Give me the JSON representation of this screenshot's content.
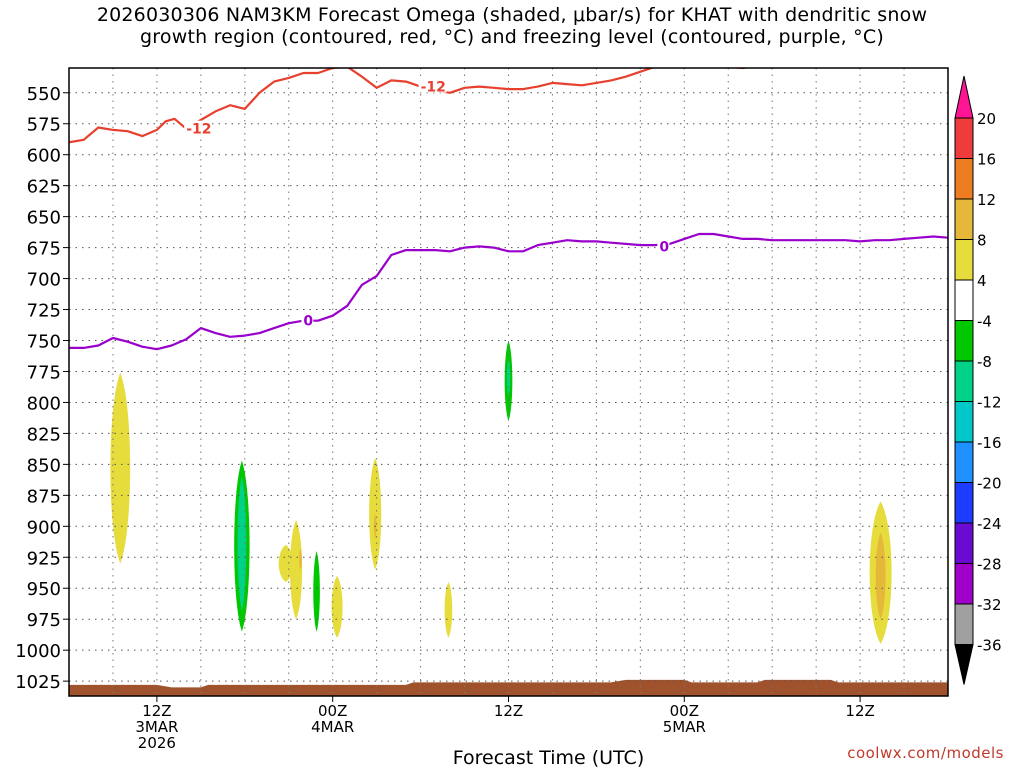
{
  "title_lines": [
    "2026030306 NAM3KM Forecast Omega (shaded, μbar/s) for KHAT with dendritic snow",
    "growth region (contoured, red, °C) and freezing level (contoured, purple, °C)"
  ],
  "watermark": "coolwx.com/models",
  "chart_data": {
    "type": "time-height cross section",
    "xlabel": "Forecast Time (UTC)",
    "ylabel": "",
    "x_range_hours": [
      0,
      60
    ],
    "y_reversed": true,
    "y_ticks": [
      550,
      575,
      600,
      625,
      650,
      675,
      700,
      725,
      750,
      775,
      800,
      825,
      850,
      875,
      900,
      925,
      950,
      975,
      1000,
      1025
    ],
    "grid": true,
    "x_ticks": [
      {
        "hour": 6,
        "lines": [
          "12Z",
          "3MAR",
          "2026"
        ]
      },
      {
        "hour": 18,
        "lines": [
          "00Z",
          "4MAR"
        ]
      },
      {
        "hour": 30,
        "lines": [
          "12Z"
        ]
      },
      {
        "hour": 42,
        "lines": [
          "00Z",
          "5MAR"
        ]
      },
      {
        "hour": 54,
        "lines": [
          "12Z"
        ]
      }
    ],
    "colorbar": {
      "units": "μbar/s",
      "levels": [
        20,
        16,
        12,
        8,
        4,
        -4,
        -8,
        -12,
        -16,
        -20,
        -24,
        -28,
        -32,
        -36
      ],
      "colors": [
        "#ff1493",
        "#ee3b3b",
        "#ee7d22",
        "#e6b83a",
        "#e6dc3c",
        "#ffffff",
        "#00c800",
        "#00d287",
        "#00c8c8",
        "#1e90ff",
        "#1e3cff",
        "#6a0ad2",
        "#a000c8",
        "#a0a0a0",
        "#000000"
      ]
    },
    "contours": [
      {
        "name": "-12",
        "color": "#e8402e",
        "label_positions": [
          {
            "hour": 8.0,
            "p": 579
          },
          {
            "hour": 24.0,
            "p": 545
          }
        ],
        "points": [
          [
            0,
            590
          ],
          [
            1,
            588
          ],
          [
            2,
            578
          ],
          [
            3,
            580
          ],
          [
            4,
            581
          ],
          [
            5,
            585
          ],
          [
            6,
            580
          ],
          [
            6.6,
            573
          ],
          [
            7.2,
            571
          ],
          [
            8.0,
            579
          ],
          [
            9,
            572
          ],
          [
            10,
            565
          ],
          [
            11,
            560
          ],
          [
            12,
            563
          ],
          [
            13,
            550
          ],
          [
            14,
            541
          ],
          [
            15,
            538
          ],
          [
            16,
            534
          ],
          [
            17,
            534
          ],
          [
            18,
            530
          ],
          [
            19,
            529
          ],
          [
            20,
            537
          ],
          [
            21,
            546
          ],
          [
            22,
            540
          ],
          [
            23,
            541
          ],
          [
            24,
            545
          ],
          [
            25,
            548
          ],
          [
            26,
            550
          ],
          [
            27,
            546
          ],
          [
            28,
            545
          ],
          [
            29,
            546
          ],
          [
            30,
            547
          ],
          [
            31,
            547
          ],
          [
            32,
            545
          ],
          [
            33,
            542
          ],
          [
            34,
            543
          ],
          [
            35,
            544
          ],
          [
            36,
            542
          ],
          [
            37,
            540
          ],
          [
            38,
            537
          ],
          [
            39,
            533
          ],
          [
            40,
            529
          ],
          [
            41,
            527
          ],
          [
            42,
            527
          ],
          [
            43,
            525
          ],
          [
            44,
            527
          ],
          [
            45,
            529
          ],
          [
            46,
            530
          ],
          [
            47,
            528
          ],
          [
            48,
            527
          ],
          [
            49,
            527
          ],
          [
            50,
            526
          ],
          [
            51,
            525
          ],
          [
            52,
            525
          ],
          [
            53,
            523
          ],
          [
            60,
            522
          ]
        ]
      },
      {
        "name": "0",
        "color": "#9900cc",
        "label_positions": [
          {
            "hour": 16.0,
            "p": 734
          },
          {
            "hour": 40.3,
            "p": 674
          }
        ],
        "points": [
          [
            0,
            756
          ],
          [
            1,
            756
          ],
          [
            2,
            754
          ],
          [
            3,
            748
          ],
          [
            4,
            751
          ],
          [
            5,
            755
          ],
          [
            6,
            757
          ],
          [
            7,
            754
          ],
          [
            8,
            749
          ],
          [
            9,
            740
          ],
          [
            10,
            744
          ],
          [
            11,
            747
          ],
          [
            12,
            746
          ],
          [
            13,
            744
          ],
          [
            14,
            740
          ],
          [
            15,
            736
          ],
          [
            16,
            734
          ],
          [
            17,
            734
          ],
          [
            18,
            730
          ],
          [
            19,
            722
          ],
          [
            20,
            705
          ],
          [
            21,
            698
          ],
          [
            22,
            681
          ],
          [
            23,
            677
          ],
          [
            24,
            677
          ],
          [
            25,
            677
          ],
          [
            26,
            678
          ],
          [
            27,
            675
          ],
          [
            28,
            674
          ],
          [
            29,
            675
          ],
          [
            30,
            678
          ],
          [
            31,
            678
          ],
          [
            32,
            673
          ],
          [
            33,
            671
          ],
          [
            34,
            669
          ],
          [
            35,
            670
          ],
          [
            36,
            670
          ],
          [
            37,
            671
          ],
          [
            38,
            672
          ],
          [
            39,
            673
          ],
          [
            40,
            673
          ],
          [
            41,
            672
          ],
          [
            42,
            668
          ],
          [
            43,
            664
          ],
          [
            44,
            664
          ],
          [
            45,
            666
          ],
          [
            46,
            668
          ],
          [
            47,
            668
          ],
          [
            48,
            669
          ],
          [
            49,
            669
          ],
          [
            50,
            669
          ],
          [
            51,
            669
          ],
          [
            52,
            669
          ],
          [
            53,
            669
          ],
          [
            54,
            670
          ],
          [
            55,
            669
          ],
          [
            56,
            669
          ],
          [
            57,
            668
          ],
          [
            58,
            667
          ],
          [
            59,
            666
          ],
          [
            60,
            667
          ]
        ]
      }
    ],
    "shaded_regions": [
      {
        "hour": 3.5,
        "p_top": 776,
        "p_bottom": 930,
        "half_width_hours": 0.9,
        "fill": "#e6dc3c",
        "value": 4
      },
      {
        "hour": 11.8,
        "p_top": 847,
        "p_bottom": 985,
        "half_width_hours": 0.7,
        "fill": "#00c800",
        "value": -4
      },
      {
        "hour": 11.8,
        "p_top": 860,
        "p_bottom": 968,
        "half_width_hours": 0.4,
        "fill": "#00d287",
        "value": -8
      },
      {
        "hour": 15.5,
        "p_top": 895,
        "p_bottom": 975,
        "half_width_hours": 0.55,
        "fill": "#e6dc3c",
        "value": 4
      },
      {
        "hour": 14.8,
        "p_top": 915,
        "p_bottom": 945,
        "half_width_hours": 0.65,
        "fill": "#e6dc3c",
        "value": 4
      },
      {
        "hour": 15.8,
        "p_top": 918,
        "p_bottom": 935,
        "half_width_hours": 0.12,
        "fill": "#e6b83a",
        "value": 8
      },
      {
        "hour": 16.9,
        "p_top": 920,
        "p_bottom": 985,
        "half_width_hours": 0.3,
        "fill": "#00c800",
        "value": -4
      },
      {
        "hour": 18.3,
        "p_top": 940,
        "p_bottom": 990,
        "half_width_hours": 0.5,
        "fill": "#e6dc3c",
        "value": 4
      },
      {
        "hour": 20.9,
        "p_top": 845,
        "p_bottom": 935,
        "half_width_hours": 0.55,
        "fill": "#e6dc3c",
        "value": 4
      },
      {
        "hour": 20.9,
        "p_top": 890,
        "p_bottom": 910,
        "half_width_hours": 0.12,
        "fill": "#e6b83a",
        "value": 8
      },
      {
        "hour": 30.0,
        "p_top": 750,
        "p_bottom": 815,
        "half_width_hours": 0.35,
        "fill": "#00c800",
        "value": -4
      },
      {
        "hour": 30.0,
        "p_top": 765,
        "p_bottom": 795,
        "half_width_hours": 0.15,
        "fill": "#00d287",
        "value": -8
      },
      {
        "hour": 25.9,
        "p_top": 945,
        "p_bottom": 990,
        "half_width_hours": 0.35,
        "fill": "#e6dc3c",
        "value": 4
      },
      {
        "hour": 55.4,
        "p_top": 880,
        "p_bottom": 995,
        "half_width_hours": 1.0,
        "fill": "#e6dc3c",
        "value": 4
      },
      {
        "hour": 55.4,
        "p_top": 905,
        "p_bottom": 975,
        "half_width_hours": 0.45,
        "fill": "#e6b83a",
        "value": 8
      }
    ],
    "terrain": {
      "fill": "#a0522d",
      "surface_pressure": [
        [
          0,
          1028
        ],
        [
          6,
          1028
        ],
        [
          7,
          1030
        ],
        [
          9,
          1030
        ],
        [
          9.5,
          1028
        ],
        [
          23,
          1028
        ],
        [
          23.5,
          1026
        ],
        [
          37,
          1026
        ],
        [
          38,
          1024
        ],
        [
          42,
          1024
        ],
        [
          42.5,
          1026
        ],
        [
          47,
          1026
        ],
        [
          47.5,
          1024
        ],
        [
          52,
          1024
        ],
        [
          52.5,
          1026
        ],
        [
          60,
          1026
        ]
      ]
    }
  }
}
